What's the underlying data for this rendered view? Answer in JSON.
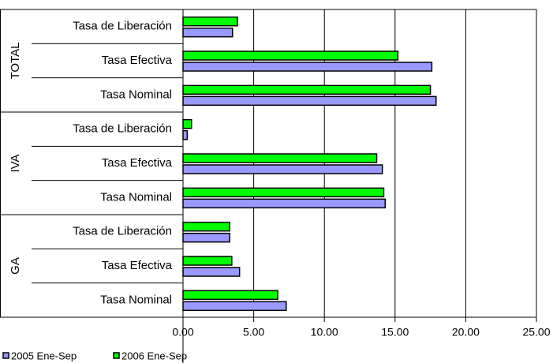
{
  "chart_data": {
    "type": "bar",
    "orientation": "horizontal",
    "group_labels": [
      "TOTAL",
      "IVA",
      "GA"
    ],
    "categories": [
      "Tasa de Liberación",
      "Tasa Efectiva",
      "Tasa Nominal",
      "Tasa de Liberación",
      "Tasa Efectiva",
      "Tasa Nominal",
      "Tasa de Liberación",
      "Tasa Efectiva",
      "Tasa Nominal"
    ],
    "series": [
      {
        "name": "2005 Ene-Sep",
        "color": "#9999ff",
        "values": [
          3.5,
          17.6,
          17.9,
          0.3,
          14.1,
          14.3,
          3.3,
          4.0,
          7.3
        ]
      },
      {
        "name": "2006 Ene-Sep",
        "color": "#00ff00",
        "values": [
          3.85,
          15.2,
          17.5,
          0.6,
          13.7,
          14.2,
          3.3,
          3.45,
          6.7
        ]
      }
    ],
    "xlim": [
      0,
      25
    ],
    "xticks": [
      {
        "value": 0,
        "label": "0.00"
      },
      {
        "value": 5,
        "label": "5.00"
      },
      {
        "value": 10,
        "label": "10.00"
      },
      {
        "value": 15,
        "label": "15.00"
      },
      {
        "value": 20,
        "label": "20.00"
      },
      {
        "value": 25,
        "label": "25.00"
      }
    ],
    "grid": true
  }
}
